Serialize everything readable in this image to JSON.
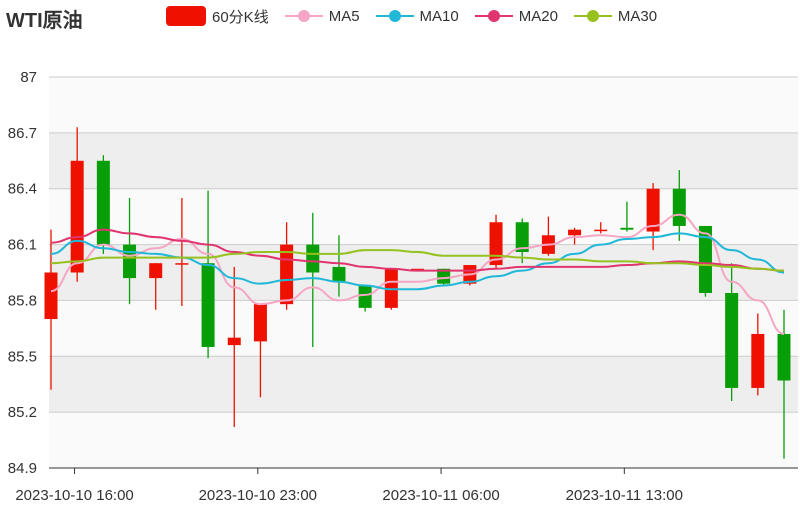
{
  "title": "WTI原油",
  "legend": {
    "k_label": "60分K线",
    "ma5_label": "MA5",
    "ma10_label": "MA10",
    "ma20_label": "MA20",
    "ma30_label": "MA30"
  },
  "colors": {
    "up": "#ee1100",
    "down": "#079e07",
    "ma5": "#f4a6c4",
    "ma10": "#21b8d8",
    "ma20": "#e0356e",
    "ma30": "#96c11e"
  },
  "chart_data": {
    "type": "candlestick",
    "title": "WTI原油",
    "ylim": [
      84.9,
      87
    ],
    "yticks": [
      84.9,
      85.2,
      85.5,
      85.8,
      86.1,
      86.4,
      86.7,
      87
    ],
    "xtick_labels": [
      "2023-10-10 16:00",
      "2023-10-10 23:00",
      "2023-10-11 06:00",
      "2023-10-11 13:00"
    ],
    "xtick_indices": [
      1,
      8,
      15,
      22
    ],
    "grid": true,
    "legend_position": "top",
    "candles": [
      {
        "o": 85.7,
        "c": 85.95,
        "h": 86.18,
        "l": 85.32
      },
      {
        "o": 85.95,
        "c": 86.55,
        "h": 86.73,
        "l": 85.9
      },
      {
        "o": 86.55,
        "c": 86.1,
        "h": 86.58,
        "l": 86.05
      },
      {
        "o": 86.1,
        "c": 85.92,
        "h": 86.35,
        "l": 85.78
      },
      {
        "o": 85.92,
        "c": 86.0,
        "h": 86.0,
        "l": 85.75
      },
      {
        "o": 86.0,
        "c": 86.0,
        "h": 86.35,
        "l": 85.77
      },
      {
        "o": 86.0,
        "c": 85.55,
        "h": 86.39,
        "l": 85.49
      },
      {
        "o": 85.56,
        "c": 85.6,
        "h": 85.98,
        "l": 85.12
      },
      {
        "o": 85.58,
        "c": 85.78,
        "h": 85.78,
        "l": 85.28
      },
      {
        "o": 85.78,
        "c": 86.1,
        "h": 86.22,
        "l": 85.75
      },
      {
        "o": 86.1,
        "c": 85.95,
        "h": 86.27,
        "l": 85.55
      },
      {
        "o": 85.98,
        "c": 85.9,
        "h": 86.15,
        "l": 85.82
      },
      {
        "o": 85.88,
        "c": 85.76,
        "h": 85.88,
        "l": 85.74
      },
      {
        "o": 85.76,
        "c": 85.97,
        "h": 85.97,
        "l": 85.75
      },
      {
        "o": 85.97,
        "c": 85.97,
        "h": 85.97,
        "l": 85.97
      },
      {
        "o": 85.97,
        "c": 85.89,
        "h": 85.97,
        "l": 85.88
      },
      {
        "o": 85.89,
        "c": 85.99,
        "h": 85.99,
        "l": 85.88
      },
      {
        "o": 85.99,
        "c": 86.22,
        "h": 86.26,
        "l": 85.97
      },
      {
        "o": 86.22,
        "c": 86.06,
        "h": 86.24,
        "l": 86.0
      },
      {
        "o": 86.05,
        "c": 86.15,
        "h": 86.25,
        "l": 86.04
      },
      {
        "o": 86.15,
        "c": 86.18,
        "h": 86.19,
        "l": 86.1
      },
      {
        "o": 86.18,
        "c": 86.18,
        "h": 86.22,
        "l": 86.16
      },
      {
        "o": 86.19,
        "c": 86.18,
        "h": 86.33,
        "l": 86.17
      },
      {
        "o": 86.17,
        "c": 86.4,
        "h": 86.43,
        "l": 86.07
      },
      {
        "o": 86.4,
        "c": 86.2,
        "h": 86.5,
        "l": 86.12
      },
      {
        "o": 86.2,
        "c": 85.84,
        "h": 86.2,
        "l": 85.82
      },
      {
        "o": 85.84,
        "c": 85.33,
        "h": 86.0,
        "l": 85.26
      },
      {
        "o": 85.33,
        "c": 85.62,
        "h": 85.73,
        "l": 85.29
      },
      {
        "o": 85.62,
        "c": 85.37,
        "h": 85.75,
        "l": 84.95
      }
    ],
    "series": [
      {
        "name": "MA5",
        "values": [
          85.85,
          86.0,
          86.1,
          86.04,
          86.08,
          86.13,
          86.05,
          85.87,
          85.78,
          85.8,
          85.87,
          85.8,
          85.83,
          85.9,
          85.9,
          85.92,
          85.94,
          86.02,
          86.08,
          86.1,
          86.14,
          86.15,
          86.14,
          86.2,
          86.26,
          86.16,
          85.9,
          85.8,
          85.62
        ]
      },
      {
        "name": "MA10",
        "values": [
          86.05,
          86.12,
          86.08,
          86.06,
          86.05,
          86.03,
          85.99,
          85.92,
          85.89,
          85.91,
          85.92,
          85.9,
          85.88,
          85.86,
          85.86,
          85.88,
          85.9,
          85.93,
          85.96,
          86.0,
          86.05,
          86.1,
          86.13,
          86.14,
          86.16,
          86.14,
          86.07,
          86.02,
          85.95
        ]
      },
      {
        "name": "MA20",
        "values": [
          86.11,
          86.14,
          86.18,
          86.16,
          86.14,
          86.12,
          86.1,
          86.06,
          86.04,
          86.02,
          86.01,
          86.0,
          85.98,
          85.97,
          85.96,
          85.96,
          85.96,
          85.97,
          85.98,
          85.98,
          85.98,
          85.98,
          85.99,
          86.0,
          86.01,
          86.0,
          85.99,
          85.97,
          85.96
        ]
      },
      {
        "name": "MA30",
        "values": [
          86.0,
          86.01,
          86.03,
          86.03,
          86.03,
          86.03,
          86.03,
          86.05,
          86.06,
          86.06,
          86.05,
          86.05,
          86.07,
          86.07,
          86.06,
          86.04,
          86.04,
          86.04,
          86.03,
          86.02,
          86.02,
          86.01,
          86.01,
          86.0,
          86.0,
          85.99,
          85.98,
          85.97,
          85.96
        ]
      }
    ]
  }
}
